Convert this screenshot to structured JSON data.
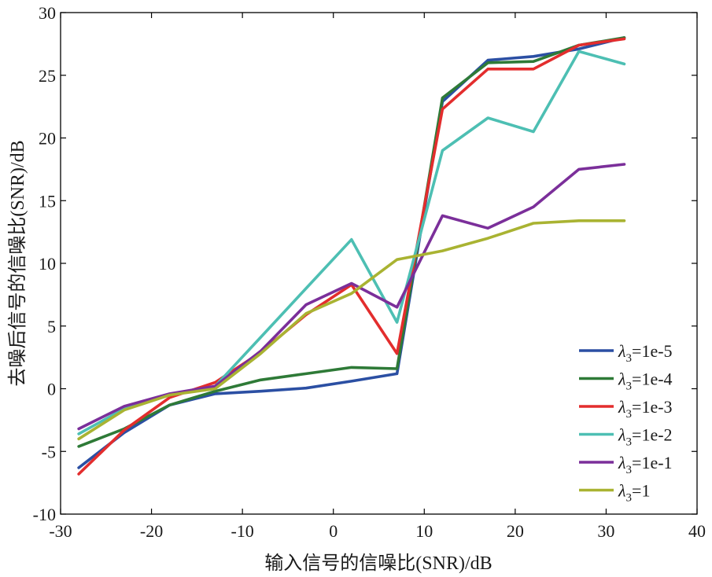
{
  "chart_data": {
    "type": "line",
    "xlabel": "输入信号的信噪比(SNR)/dB",
    "ylabel": "去噪后信号的信噪比(SNR)/dB",
    "xlim": [
      -30,
      40
    ],
    "ylim": [
      -10,
      30
    ],
    "xticks": [
      -30,
      -20,
      -10,
      0,
      10,
      20,
      30,
      40
    ],
    "yticks": [
      -10,
      -5,
      0,
      5,
      10,
      15,
      20,
      25,
      30
    ],
    "grid": false,
    "legend_position": "bottom-right",
    "x": [
      -28,
      -23,
      -18,
      -13,
      -8,
      -3,
      2,
      7,
      12,
      17,
      22,
      27,
      32
    ],
    "series": [
      {
        "name": "λ3=1e-5",
        "symbol": "λ",
        "subscript": "3",
        "suffix": "=1e-5",
        "color": "#2b4fa3",
        "values": [
          -6.3,
          -3.5,
          -1.3,
          -0.4,
          -0.2,
          0.05,
          0.6,
          1.2,
          22.9,
          26.2,
          26.5,
          27.1,
          28.0
        ]
      },
      {
        "name": "λ3=1e-4",
        "symbol": "λ",
        "subscript": "3",
        "suffix": "=1e-4",
        "color": "#2e7a37",
        "values": [
          -4.6,
          -3.2,
          -1.3,
          -0.2,
          0.7,
          1.2,
          1.7,
          1.6,
          23.2,
          26.0,
          26.1,
          27.4,
          28.0
        ]
      },
      {
        "name": "λ3=1e-3",
        "symbol": "λ",
        "subscript": "3",
        "suffix": "=1e-3",
        "color": "#e32d2d",
        "values": [
          -6.8,
          -3.3,
          -0.7,
          0.5,
          2.9,
          5.9,
          8.3,
          2.8,
          22.3,
          25.5,
          25.5,
          27.4,
          27.9
        ]
      },
      {
        "name": "λ3=1e-2",
        "symbol": "λ",
        "subscript": "3",
        "suffix": "=1e-2",
        "color": "#4dbfb3",
        "values": [
          -3.6,
          -1.6,
          -0.5,
          0.2,
          4.1,
          8.0,
          11.9,
          5.3,
          19.0,
          21.6,
          20.5,
          26.9,
          25.9
        ]
      },
      {
        "name": "λ3=1e-1",
        "symbol": "λ",
        "subscript": "3",
        "suffix": "=1e-1",
        "color": "#7b2f9a",
        "values": [
          -3.2,
          -1.4,
          -0.4,
          0.2,
          3.0,
          6.7,
          8.4,
          6.5,
          13.8,
          12.8,
          14.5,
          17.5,
          17.9
        ]
      },
      {
        "name": "λ3=1",
        "symbol": "λ",
        "subscript": "3",
        "suffix": "=1",
        "color": "#a9b332",
        "values": [
          -4.0,
          -1.7,
          -0.5,
          0.0,
          2.8,
          6.0,
          7.6,
          10.3,
          11.0,
          12.0,
          13.2,
          13.4,
          13.4
        ]
      }
    ]
  }
}
